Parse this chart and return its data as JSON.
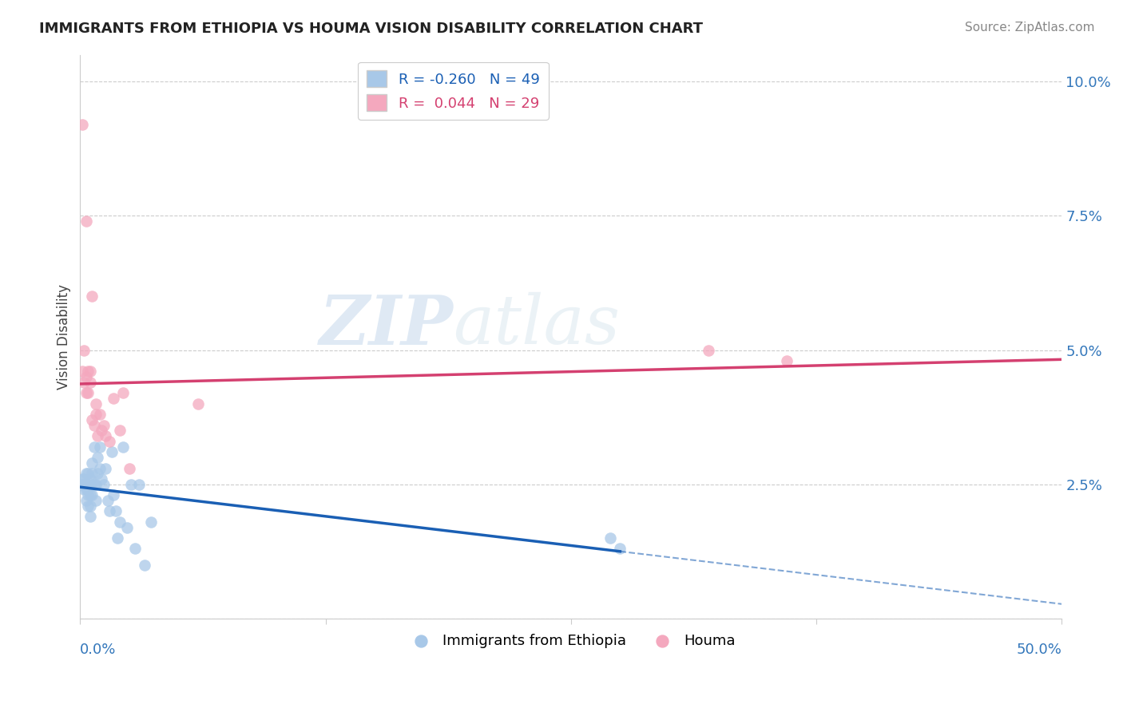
{
  "title": "IMMIGRANTS FROM ETHIOPIA VS HOUMA VISION DISABILITY CORRELATION CHART",
  "source": "Source: ZipAtlas.com",
  "ylabel": "Vision Disability",
  "xlim": [
    0.0,
    0.5
  ],
  "ylim": [
    0.0,
    0.105
  ],
  "blue_label": "Immigrants from Ethiopia",
  "pink_label": "Houma",
  "blue_R": -0.26,
  "blue_N": 49,
  "pink_R": 0.044,
  "pink_N": 29,
  "blue_color": "#a8c8e8",
  "pink_color": "#f4a8be",
  "blue_line_color": "#1a5fb4",
  "pink_line_color": "#d44070",
  "watermark_zip": "ZIP",
  "watermark_atlas": "atlas",
  "blue_x": [
    0.001,
    0.001,
    0.002,
    0.002,
    0.002,
    0.003,
    0.003,
    0.003,
    0.003,
    0.004,
    0.004,
    0.004,
    0.004,
    0.004,
    0.005,
    0.005,
    0.005,
    0.005,
    0.006,
    0.006,
    0.006,
    0.006,
    0.007,
    0.007,
    0.008,
    0.008,
    0.009,
    0.009,
    0.01,
    0.01,
    0.011,
    0.012,
    0.013,
    0.014,
    0.015,
    0.016,
    0.017,
    0.018,
    0.019,
    0.02,
    0.022,
    0.024,
    0.026,
    0.028,
    0.03,
    0.033,
    0.036,
    0.27,
    0.275
  ],
  "blue_y": [
    0.025,
    0.026,
    0.024,
    0.025,
    0.026,
    0.022,
    0.024,
    0.025,
    0.027,
    0.021,
    0.023,
    0.024,
    0.025,
    0.027,
    0.019,
    0.021,
    0.023,
    0.026,
    0.023,
    0.025,
    0.027,
    0.029,
    0.025,
    0.032,
    0.022,
    0.025,
    0.027,
    0.03,
    0.028,
    0.032,
    0.026,
    0.025,
    0.028,
    0.022,
    0.02,
    0.031,
    0.023,
    0.02,
    0.015,
    0.018,
    0.032,
    0.017,
    0.025,
    0.013,
    0.025,
    0.01,
    0.018,
    0.015,
    0.013
  ],
  "pink_x": [
    0.001,
    0.001,
    0.002,
    0.002,
    0.003,
    0.003,
    0.003,
    0.004,
    0.004,
    0.005,
    0.005,
    0.006,
    0.006,
    0.007,
    0.008,
    0.008,
    0.009,
    0.01,
    0.011,
    0.012,
    0.013,
    0.015,
    0.017,
    0.02,
    0.022,
    0.025,
    0.06,
    0.32,
    0.36
  ],
  "pink_y": [
    0.092,
    0.046,
    0.044,
    0.05,
    0.042,
    0.045,
    0.074,
    0.042,
    0.046,
    0.044,
    0.046,
    0.037,
    0.06,
    0.036,
    0.038,
    0.04,
    0.034,
    0.038,
    0.035,
    0.036,
    0.034,
    0.033,
    0.041,
    0.035,
    0.042,
    0.028,
    0.04,
    0.05,
    0.048
  ]
}
